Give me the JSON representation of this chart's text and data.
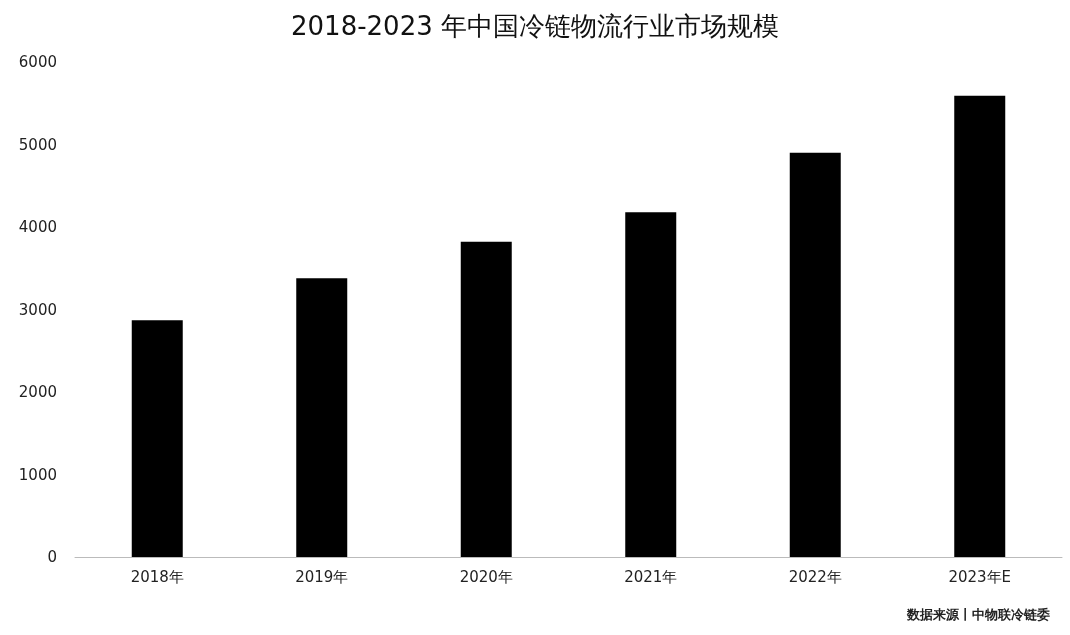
{
  "chart_data": {
    "type": "bar",
    "title": "2018-2023 年中国冷链物流行业市场规模",
    "categories": [
      "2018年",
      "2019年",
      "2020年",
      "2021年",
      "2022年",
      "2023年E"
    ],
    "values": [
      2870,
      3380,
      3820,
      4180,
      4900,
      5590
    ],
    "color": "#000000",
    "ylim": [
      0,
      6000
    ],
    "yticks": [
      0,
      1000,
      2000,
      3000,
      4000,
      5000,
      6000
    ],
    "grid": false,
    "annotations": [
      "数据来源丨中物联冷链委"
    ]
  }
}
